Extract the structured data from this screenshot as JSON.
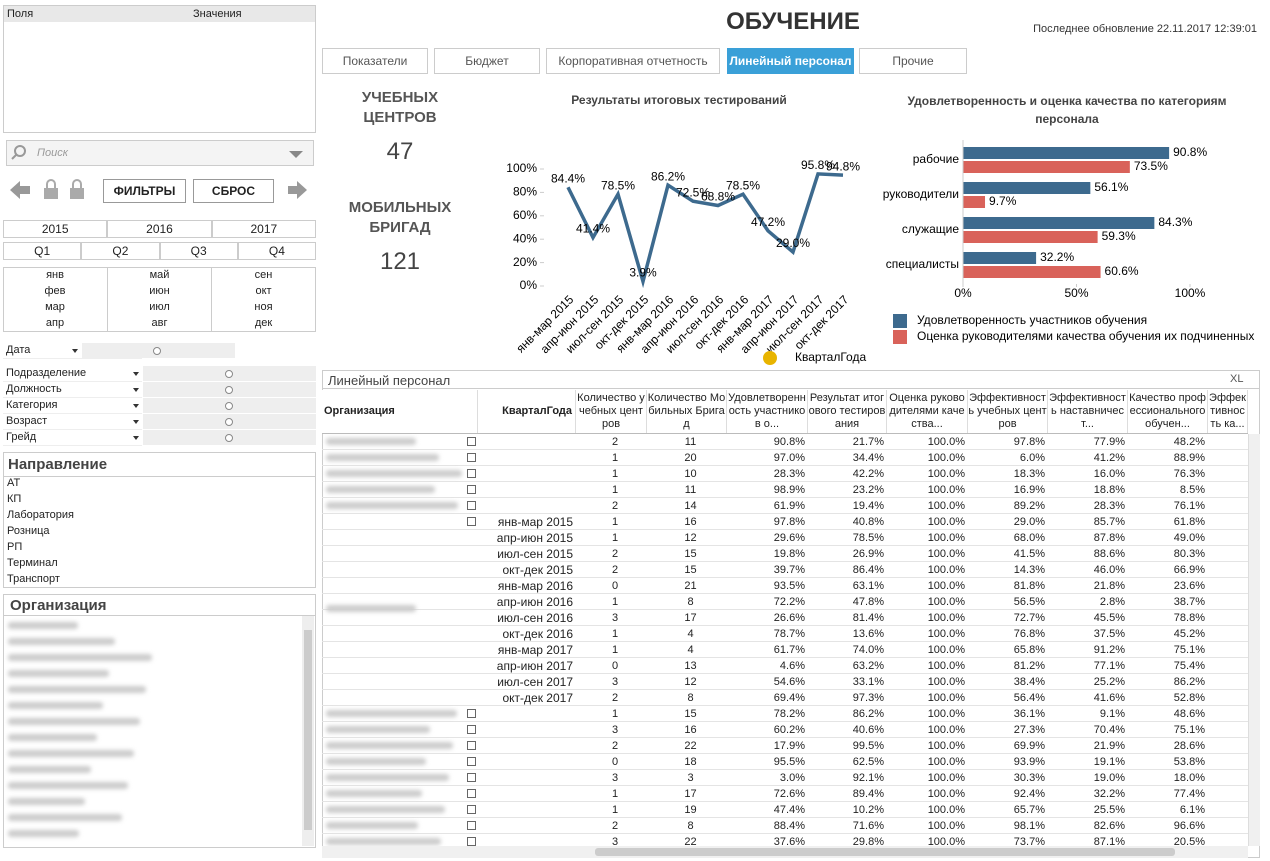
{
  "header": {
    "title": "ОБУЧЕНИЕ",
    "last_update": "Последнее обновление 22.11.2017 12:39:01"
  },
  "tabs": {
    "items": [
      "Показатели",
      "Бюджет",
      "Корпоративная отчетность",
      "Линейный персонал",
      "Прочие"
    ],
    "active": 3
  },
  "left_panel": {
    "fields_header": [
      "Поля",
      "Значения"
    ],
    "search_placeholder": "Поиск",
    "buttons": [
      "ФИЛЬТРЫ",
      "СБРОС"
    ],
    "years": [
      "2015",
      "2016",
      "2017"
    ],
    "quarters": [
      "Q1",
      "Q2",
      "Q3",
      "Q4"
    ],
    "months": [
      "янв",
      "фев",
      "мар",
      "апр",
      "май",
      "июн",
      "июл",
      "авг",
      "сен",
      "окт",
      "ноя",
      "дек"
    ],
    "date_filter": "Дата",
    "dimensions": [
      "Подразделение",
      "Должность",
      "Категория",
      "Возраст",
      "Грейд"
    ],
    "direction": {
      "title": "Направление",
      "items": [
        "АТ",
        "КП",
        "Лаборатория",
        "Розница",
        "РП",
        "Терминал",
        "Транспорт"
      ]
    },
    "organization": {
      "title": "Организация"
    }
  },
  "kpis": [
    {
      "label": "УЧЕБНЫХ ЦЕНТРОВ",
      "value": 47
    },
    {
      "label": "МОБИЛЬНЫХ БРИГАД",
      "value": 121
    }
  ],
  "chart_data": [
    {
      "type": "line",
      "title": "Результаты итоговых тестирований",
      "dimension_control": "КварталГода",
      "categories": [
        "янв-мар 2015",
        "апр-июн 2015",
        "июл-сен 2015",
        "окт-дек 2015",
        "янв-мар 2016",
        "апр-июн 2016",
        "июл-сен 2016",
        "окт-дек 2016",
        "янв-мар 2017",
        "апр-июн 2017",
        "июл-сен 2017",
        "окт-дек 2017"
      ],
      "values": [
        84.4,
        41.4,
        78.5,
        3.9,
        86.2,
        72.5,
        68.8,
        78.5,
        47.2,
        29.0,
        95.8,
        94.8
      ],
      "value_labels": [
        "84.4%",
        "41.4%",
        "78.5%",
        "3.9%",
        "86.2%",
        "72.5%",
        "68.8%",
        "78.5%",
        "47.2%",
        "29.0%",
        "95.8%",
        "94.8%"
      ],
      "color": "#3d6a8e",
      "ylim": [
        0,
        100
      ],
      "yticks": [
        {
          "value": 0,
          "label": "0%"
        },
        {
          "value": 20,
          "label": "20%"
        },
        {
          "value": 40,
          "label": "40%"
        },
        {
          "value": 60,
          "label": "60%"
        },
        {
          "value": 80,
          "label": "80%"
        },
        {
          "value": 100,
          "label": "100%"
        }
      ]
    },
    {
      "type": "hbar",
      "title": "Удовлетворенность и оценка качества по категориям персонала",
      "categories": [
        "рабочие",
        "руководители",
        "служащие",
        "специалисты"
      ],
      "series": [
        {
          "name": "Удовлетворенность участников обучения",
          "color": "#3d6a8e",
          "values": [
            90.8,
            56.1,
            84.3,
            32.2
          ],
          "value_labels": [
            "90.8%",
            "56.1%",
            "84.3%",
            "32.2%"
          ]
        },
        {
          "name": "Оценка руководителями качества обучения их подчиненных",
          "color": "#d9625a",
          "values": [
            73.5,
            9.7,
            59.3,
            60.6
          ],
          "value_labels": [
            "73.5%",
            "9.7%",
            "59.3%",
            "60.6%"
          ]
        }
      ],
      "xlim": [
        0,
        100
      ],
      "xticks": [
        {
          "value": 0,
          "label": "0%"
        },
        {
          "value": 50,
          "label": "50%"
        },
        {
          "value": 100,
          "label": "100%"
        }
      ],
      "legend": "bottom"
    }
  ],
  "table": {
    "title": "Линейный персонал",
    "toolbar": "XL",
    "columns": [
      "Организация",
      "КварталГода",
      "Количество учебных центров",
      "Количество Мобильных Бригад",
      "Удовлетворенность участников о...",
      "Результат итогового тестирования",
      "Оценка руководителями качества...",
      "Эффективность учебных центров",
      "Эффективность наставничест...",
      "Качество профессионального обучен...",
      "Эффективность ка..."
    ],
    "rows": [
      {
        "cells": [
          "2",
          "11",
          "90.8%",
          "21.7%",
          "100.0%",
          "97.8%",
          "77.9%",
          "48.2%"
        ]
      },
      {
        "cells": [
          "1",
          "20",
          "97.0%",
          "34.4%",
          "100.0%",
          "6.0%",
          "41.2%",
          "88.9%"
        ]
      },
      {
        "cells": [
          "1",
          "10",
          "28.3%",
          "42.2%",
          "100.0%",
          "18.3%",
          "16.0%",
          "76.3%"
        ]
      },
      {
        "cells": [
          "1",
          "11",
          "98.9%",
          "23.2%",
          "100.0%",
          "16.9%",
          "18.8%",
          "8.5%"
        ]
      },
      {
        "cells": [
          "2",
          "14",
          "61.9%",
          "19.4%",
          "100.0%",
          "89.2%",
          "28.3%",
          "76.1%"
        ]
      },
      {
        "quarter": "янв-мар 2015",
        "cells": [
          "1",
          "16",
          "97.8%",
          "40.8%",
          "100.0%",
          "29.0%",
          "85.7%",
          "61.8%"
        ]
      },
      {
        "quarter": "апр-июн 2015",
        "cells": [
          "1",
          "12",
          "29.6%",
          "78.5%",
          "100.0%",
          "68.0%",
          "87.8%",
          "49.0%"
        ]
      },
      {
        "quarter": "июл-сен 2015",
        "cells": [
          "2",
          "15",
          "19.8%",
          "26.9%",
          "100.0%",
          "41.5%",
          "88.6%",
          "80.3%"
        ]
      },
      {
        "quarter": "окт-дек 2015",
        "cells": [
          "2",
          "15",
          "39.7%",
          "86.4%",
          "100.0%",
          "14.3%",
          "46.0%",
          "66.9%"
        ]
      },
      {
        "quarter": "янв-мар 2016",
        "cells": [
          "0",
          "21",
          "93.5%",
          "63.1%",
          "100.0%",
          "81.8%",
          "21.8%",
          "23.6%"
        ]
      },
      {
        "quarter": "апр-июн 2016",
        "cells": [
          "1",
          "8",
          "72.2%",
          "47.8%",
          "100.0%",
          "56.5%",
          "2.8%",
          "38.7%"
        ]
      },
      {
        "quarter": "июл-сен 2016",
        "cells": [
          "3",
          "17",
          "26.6%",
          "81.4%",
          "100.0%",
          "72.7%",
          "45.5%",
          "78.8%"
        ]
      },
      {
        "quarter": "окт-дек 2016",
        "cells": [
          "1",
          "4",
          "78.7%",
          "13.6%",
          "100.0%",
          "76.8%",
          "37.5%",
          "45.2%"
        ]
      },
      {
        "quarter": "янв-мар 2017",
        "cells": [
          "1",
          "4",
          "61.7%",
          "74.0%",
          "100.0%",
          "65.8%",
          "91.2%",
          "75.1%"
        ]
      },
      {
        "quarter": "апр-июн 2017",
        "cells": [
          "0",
          "13",
          "4.6%",
          "63.2%",
          "100.0%",
          "81.2%",
          "77.1%",
          "75.4%"
        ]
      },
      {
        "quarter": "июл-сен 2017",
        "cells": [
          "3",
          "12",
          "54.6%",
          "33.1%",
          "100.0%",
          "38.4%",
          "25.2%",
          "86.2%"
        ]
      },
      {
        "quarter": "окт-дек 2017",
        "cells": [
          "2",
          "8",
          "69.4%",
          "97.3%",
          "100.0%",
          "56.4%",
          "41.6%",
          "52.8%"
        ]
      },
      {
        "cells": [
          "1",
          "15",
          "78.2%",
          "86.2%",
          "100.0%",
          "36.1%",
          "9.1%",
          "48.6%"
        ]
      },
      {
        "cells": [
          "3",
          "16",
          "60.2%",
          "40.6%",
          "100.0%",
          "27.3%",
          "70.4%",
          "75.1%"
        ]
      },
      {
        "cells": [
          "2",
          "22",
          "17.9%",
          "99.5%",
          "100.0%",
          "69.9%",
          "21.9%",
          "28.6%"
        ]
      },
      {
        "cells": [
          "0",
          "18",
          "95.5%",
          "62.5%",
          "100.0%",
          "93.9%",
          "19.1%",
          "53.8%"
        ]
      },
      {
        "cells": [
          "3",
          "3",
          "3.0%",
          "92.1%",
          "100.0%",
          "30.3%",
          "19.0%",
          "18.0%"
        ]
      },
      {
        "cells": [
          "1",
          "17",
          "72.6%",
          "89.4%",
          "100.0%",
          "92.4%",
          "32.2%",
          "77.4%"
        ]
      },
      {
        "cells": [
          "1",
          "19",
          "47.4%",
          "10.2%",
          "100.0%",
          "65.7%",
          "25.5%",
          "6.1%"
        ]
      },
      {
        "cells": [
          "2",
          "8",
          "88.4%",
          "71.6%",
          "100.0%",
          "98.1%",
          "82.6%",
          "96.6%"
        ]
      },
      {
        "cells": [
          "3",
          "22",
          "37.6%",
          "29.8%",
          "100.0%",
          "73.7%",
          "87.1%",
          "20.5%"
        ]
      }
    ]
  }
}
